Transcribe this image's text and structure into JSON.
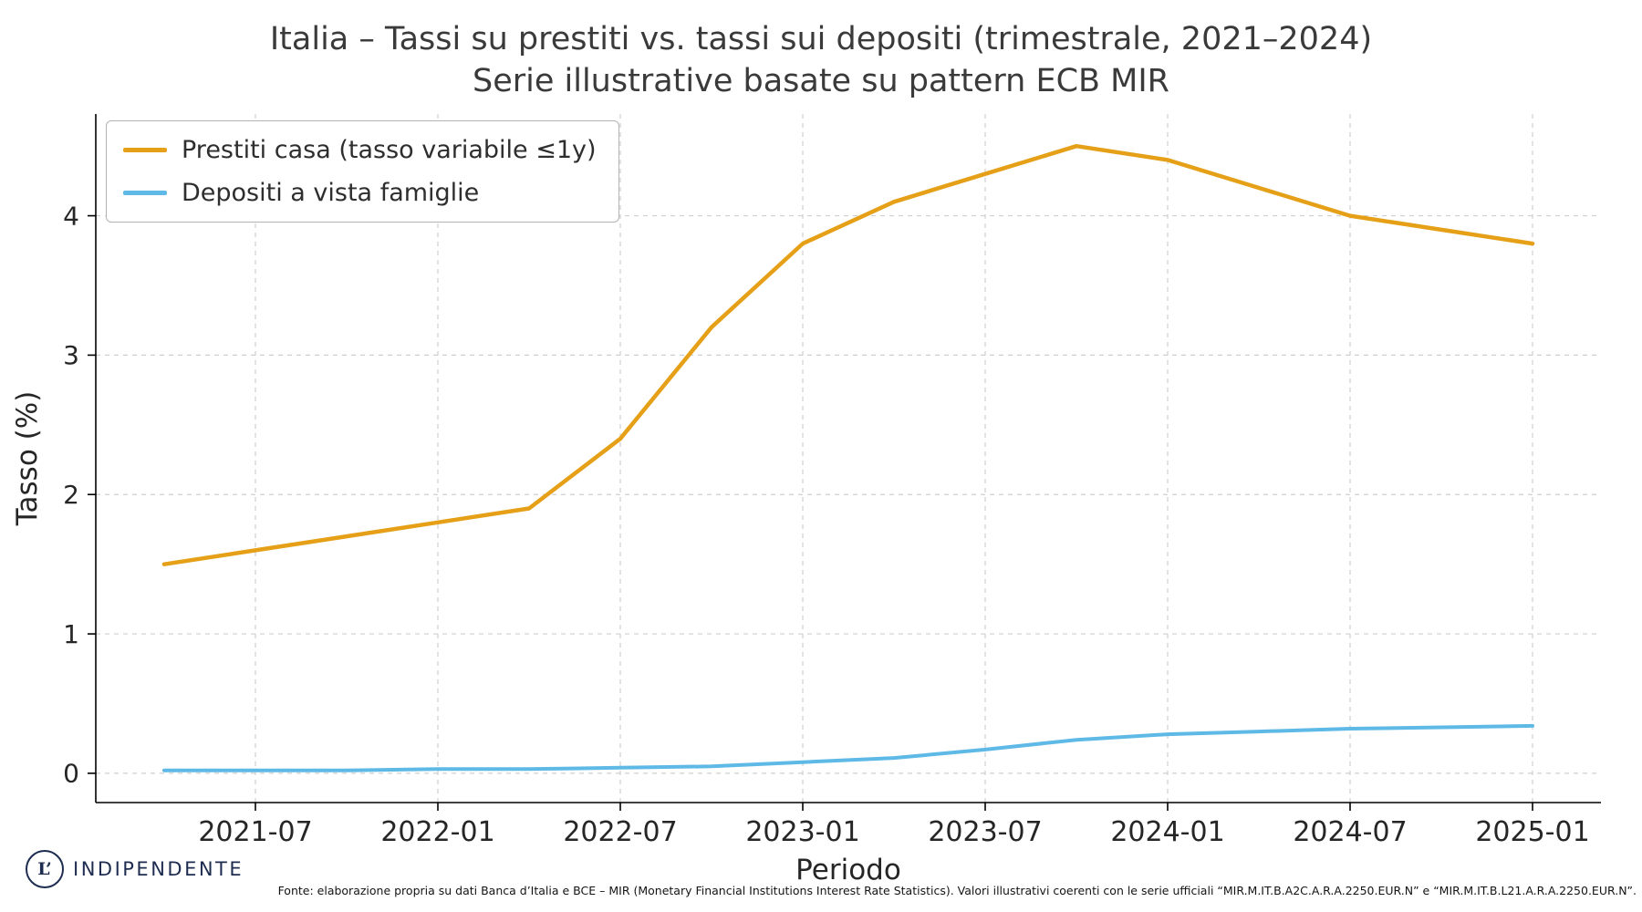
{
  "chart_data": {
    "type": "line",
    "title": "Italia – Tassi su prestiti vs. tassi sui depositi (trimestrale, 2021–2024)",
    "subtitle": "Serie illustrative basate su pattern ECB MIR",
    "xlabel": "Periodo",
    "ylabel": "Tasso (%)",
    "x": [
      "2021-04",
      "2021-07",
      "2021-10",
      "2022-01",
      "2022-04",
      "2022-07",
      "2022-10",
      "2023-01",
      "2023-04",
      "2023-07",
      "2023-10",
      "2024-01",
      "2024-04",
      "2024-07",
      "2024-10",
      "2025-01"
    ],
    "series": [
      {
        "name": "Prestiti casa (tasso variabile ≤1y)",
        "color": "#E5A018",
        "values": [
          1.5,
          1.6,
          1.7,
          1.8,
          1.9,
          2.4,
          3.2,
          3.8,
          4.1,
          4.3,
          4.5,
          4.4,
          4.2,
          4.0,
          3.9,
          3.8
        ]
      },
      {
        "name": "Depositi a vista famiglie",
        "color": "#5FB9E6",
        "values": [
          0.02,
          0.02,
          0.02,
          0.03,
          0.03,
          0.04,
          0.05,
          0.08,
          0.11,
          0.17,
          0.24,
          0.28,
          0.3,
          0.32,
          0.33,
          0.34
        ]
      }
    ],
    "yticks": [
      0,
      1,
      2,
      3,
      4
    ],
    "xticks": [
      "2021-07",
      "2022-01",
      "2022-07",
      "2023-01",
      "2023-07",
      "2024-01",
      "2024-07",
      "2025-01"
    ],
    "ylim": [
      -0.21,
      4.73
    ],
    "grid": true,
    "legend_position": "top-left"
  },
  "branding": {
    "logo_mark": "L’",
    "logo_text": "INDIPENDENTE",
    "logo_color": "#1d2c50"
  },
  "footer": {
    "source_note": "Fonte: elaborazione propria su dati Banca d’Italia e BCE – MIR (Monetary Financial Institutions Interest Rate Statistics). Valori illustrativi coerenti con le serie ufficiali “MIR.M.IT.B.A2C.A.R.A.2250.EUR.N” e “MIR.M.IT.B.L21.A.R.A.2250.EUR.N”."
  }
}
